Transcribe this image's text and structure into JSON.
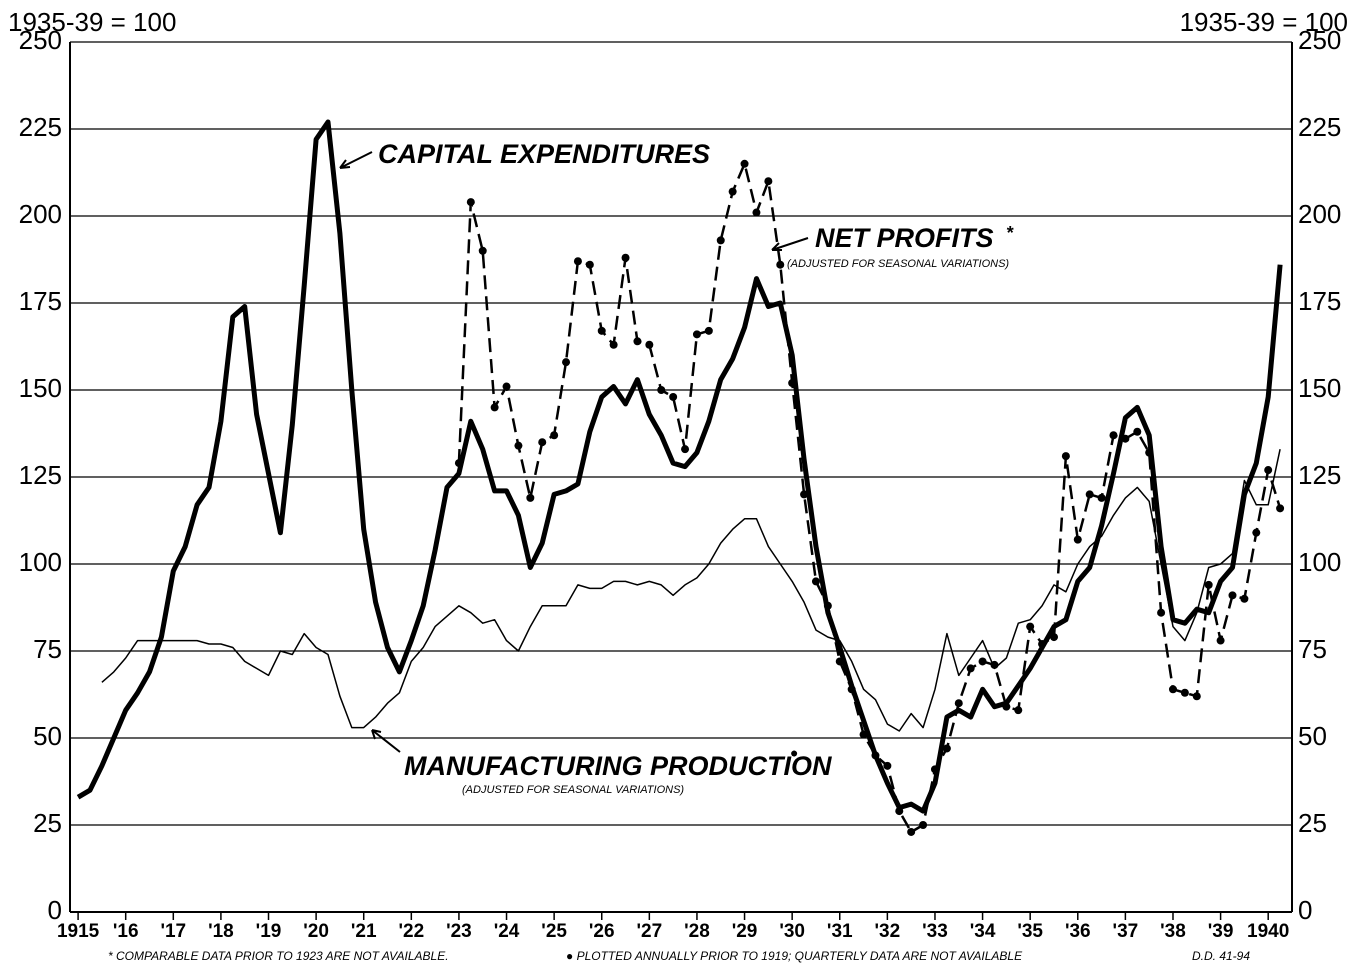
{
  "chart_data": {
    "type": "line",
    "y_label_left": "1935-39 = 100",
    "y_label_right": "1935-39 = 100",
    "footnotes": [
      "* COMPARABLE DATA PRIOR TO 1923 ARE NOT AVAILABLE.",
      "● PLOTTED ANNUALLY PRIOR TO 1919; QUARTERLY DATA ARE NOT AVAILABLE"
    ],
    "code": "D.D. 41-94",
    "x": [
      1915,
      1915.25,
      1915.5,
      1915.75,
      1916,
      1916.25,
      1916.5,
      1916.75,
      1917,
      1917.25,
      1917.5,
      1917.75,
      1918,
      1918.25,
      1918.5,
      1918.75,
      1919,
      1919.25,
      1919.5,
      1919.75,
      1920,
      1920.25,
      1920.5,
      1920.75,
      1921,
      1921.25,
      1921.5,
      1921.75,
      1922,
      1922.25,
      1922.5,
      1922.75,
      1923,
      1923.25,
      1923.5,
      1923.75,
      1924,
      1924.25,
      1924.5,
      1924.75,
      1925,
      1925.25,
      1925.5,
      1925.75,
      1926,
      1926.25,
      1926.5,
      1926.75,
      1927,
      1927.25,
      1927.5,
      1927.75,
      1928,
      1928.25,
      1928.5,
      1928.75,
      1929,
      1929.25,
      1929.5,
      1929.75,
      1930,
      1930.25,
      1930.5,
      1930.75,
      1931,
      1931.25,
      1931.5,
      1931.75,
      1932,
      1932.25,
      1932.5,
      1932.75,
      1933,
      1933.25,
      1933.5,
      1933.75,
      1934,
      1934.25,
      1934.5,
      1934.75,
      1935,
      1935.25,
      1935.5,
      1935.75,
      1936,
      1936.25,
      1936.5,
      1936.75,
      1937,
      1937.25,
      1937.5,
      1937.75,
      1938,
      1938.25,
      1938.5,
      1938.75,
      1939,
      1939.25,
      1939.5,
      1939.75,
      1940,
      1940.25
    ],
    "series": [
      {
        "name": "CAPITAL EXPENDITURES",
        "color": "#000000",
        "width": 5,
        "dash": "none",
        "markers": false,
        "values": [
          33,
          35,
          42,
          50,
          58,
          63,
          69,
          79,
          98,
          105,
          117,
          122,
          141,
          171,
          174,
          143,
          126,
          109,
          140,
          180,
          222,
          227,
          195,
          150,
          110,
          89,
          76,
          69,
          78,
          88,
          104,
          122,
          126,
          141,
          133,
          121,
          121,
          114,
          99,
          106,
          120,
          121,
          123,
          138,
          148,
          151,
          146,
          153,
          143,
          137,
          129,
          128,
          132,
          141,
          153,
          159,
          168,
          182,
          174,
          175,
          160,
          130,
          105,
          86,
          76,
          65,
          55,
          45,
          37,
          30,
          31,
          29,
          37,
          56,
          58,
          56,
          64,
          59,
          60,
          65,
          70,
          76,
          82,
          84,
          95,
          99,
          111,
          126,
          142,
          145,
          137,
          105,
          84,
          83,
          87,
          86,
          95,
          99,
          120,
          129,
          148,
          186
        ]
      },
      {
        "name": "NET PROFITS",
        "mark": "*",
        "note": "(ADJUSTED FOR SEASONAL VARIATIONS)",
        "color": "#000000",
        "width": 2.5,
        "dash": "14 7",
        "markers": true,
        "values": [
          null,
          null,
          null,
          null,
          null,
          null,
          null,
          null,
          null,
          null,
          null,
          null,
          null,
          null,
          null,
          null,
          null,
          null,
          null,
          null,
          null,
          null,
          null,
          null,
          null,
          null,
          null,
          null,
          null,
          null,
          null,
          null,
          129,
          204,
          190,
          145,
          151,
          134,
          119,
          135,
          137,
          158,
          187,
          186,
          167,
          163,
          188,
          164,
          163,
          150,
          148,
          133,
          166,
          167,
          193,
          207,
          215,
          201,
          210,
          186,
          152,
          120,
          95,
          88,
          72,
          64,
          51,
          45,
          42,
          29,
          23,
          25,
          41,
          47,
          60,
          70,
          72,
          71,
          59,
          58,
          82,
          77,
          79,
          131,
          107,
          120,
          119,
          137,
          136,
          138,
          132,
          86,
          64,
          63,
          62,
          94,
          78,
          91,
          90,
          109,
          127,
          116
        ]
      },
      {
        "name": "MANUFACTURING PRODUCTION",
        "mark": "●",
        "note": "(ADJUSTED FOR SEASONAL VARIATIONS)",
        "color": "#000000",
        "width": 1.5,
        "dash": "none",
        "markers": false,
        "values": [
          null,
          null,
          66,
          69,
          73,
          78,
          78,
          78,
          78,
          78,
          78,
          77,
          77,
          76,
          72,
          70,
          68,
          75,
          74,
          80,
          76,
          74,
          62,
          53,
          53,
          56,
          60,
          63,
          72,
          76,
          82,
          85,
          88,
          86,
          83,
          84,
          78,
          75,
          82,
          88,
          88,
          88,
          94,
          93,
          93,
          95,
          95,
          94,
          95,
          94,
          91,
          94,
          96,
          100,
          106,
          110,
          113,
          113,
          105,
          100,
          95,
          89,
          81,
          79,
          78,
          72,
          64,
          61,
          54,
          52,
          57,
          53,
          64,
          80,
          68,
          73,
          78,
          70,
          73,
          83,
          84,
          88,
          94,
          92,
          100,
          105,
          108,
          114,
          119,
          122,
          118,
          100,
          82,
          78,
          86,
          99,
          100,
          103,
          124,
          117,
          117,
          133
        ]
      }
    ],
    "xlim": [
      1914.83,
      1940.5
    ],
    "xticks": [
      {
        "value": 1915,
        "label": "1915"
      },
      {
        "value": 1916,
        "label": "'16"
      },
      {
        "value": 1917,
        "label": "'17"
      },
      {
        "value": 1918,
        "label": "'18"
      },
      {
        "value": 1919,
        "label": "'19"
      },
      {
        "value": 1920,
        "label": "'20"
      },
      {
        "value": 1921,
        "label": "'21"
      },
      {
        "value": 1922,
        "label": "'22"
      },
      {
        "value": 1923,
        "label": "'23"
      },
      {
        "value": 1924,
        "label": "'24"
      },
      {
        "value": 1925,
        "label": "'25"
      },
      {
        "value": 1926,
        "label": "'26"
      },
      {
        "value": 1927,
        "label": "'27"
      },
      {
        "value": 1928,
        "label": "'28"
      },
      {
        "value": 1929,
        "label": "'29"
      },
      {
        "value": 1930,
        "label": "'30"
      },
      {
        "value": 1931,
        "label": "'31"
      },
      {
        "value": 1932,
        "label": "'32"
      },
      {
        "value": 1933,
        "label": "'33"
      },
      {
        "value": 1934,
        "label": "'34"
      },
      {
        "value": 1935,
        "label": "'35"
      },
      {
        "value": 1936,
        "label": "'36"
      },
      {
        "value": 1937,
        "label": "'37"
      },
      {
        "value": 1938,
        "label": "'38"
      },
      {
        "value": 1939,
        "label": "'39"
      },
      {
        "value": 1940,
        "label": "1940"
      }
    ],
    "ylim": [
      0,
      250
    ],
    "yticks": [
      0,
      25,
      50,
      75,
      100,
      125,
      150,
      175,
      200,
      225,
      250
    ],
    "grid": true
  }
}
